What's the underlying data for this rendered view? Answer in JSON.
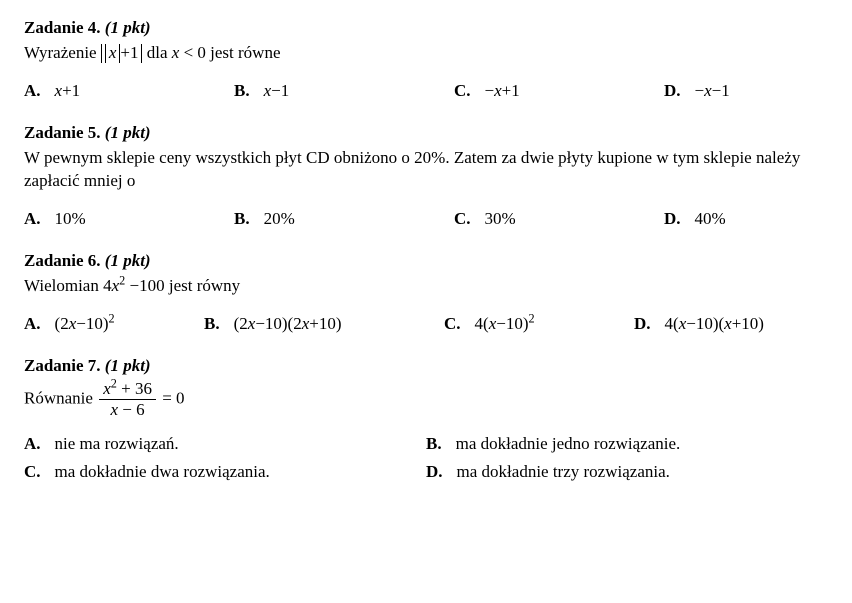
{
  "tasks": [
    {
      "num": "Zadanie 4.",
      "pts": "(1 pkt)",
      "prompt_pre": "Wyrażenie ",
      "prompt_post": " dla ",
      "abs_inner_var": "x",
      "abs_inner_plus": "+1",
      "cond_var": "x",
      "cond_rest": " < 0 jest równe",
      "answers": {
        "A": {
          "v": "x",
          "t": "+1"
        },
        "B": {
          "v": "x",
          "t": "−1"
        },
        "C": {
          "pre": "−",
          "v": "x",
          "t": "+1"
        },
        "D": {
          "pre": "−",
          "v": "x",
          "t": "−1"
        }
      }
    },
    {
      "num": "Zadanie 5.",
      "pts": "(1 pkt)",
      "prompt": "W pewnym sklepie ceny wszystkich płyt CD obniżono o 20%. Zatem za dwie płyty kupione w tym sklepie należy zapłacić mniej o",
      "answers": {
        "A": "10%",
        "B": "20%",
        "C": "30%",
        "D": "40%"
      }
    },
    {
      "num": "Zadanie 6.",
      "pts": "(1 pkt)",
      "prompt_pre": "Wielomian ",
      "poly_coef": "4",
      "poly_var": "x",
      "poly_rest": " −100 jest równy",
      "answers": {
        "A": {
          "open": "(2",
          "v": "x",
          "mid": "−10)",
          "sup": "2"
        },
        "B": {
          "open": "(2",
          "v": "x",
          "mid": "−10)(2",
          "v2": "x",
          "close": "+10)"
        },
        "C": {
          "open": "4(",
          "v": "x",
          "mid": "−10)",
          "sup": "2"
        },
        "D": {
          "open": "4(",
          "v": "x",
          "mid": "−10)(",
          "v2": "x",
          "close": "+10)"
        }
      }
    },
    {
      "num": "Zadanie 7.",
      "pts": "(1 pkt)",
      "prompt_pre": "Równanie ",
      "num_var": "x",
      "num_rest": " + 36",
      "den_var": "x",
      "den_rest": " − 6",
      "eq": " = 0",
      "answers": {
        "A": "nie ma rozwiązań.",
        "B": "ma dokładnie jedno rozwiązanie.",
        "C": "ma dokładnie dwa rozwiązania.",
        "D": "ma dokładnie trzy rozwiązania."
      }
    }
  ],
  "labels": {
    "A": "A.",
    "B": "B.",
    "C": "C.",
    "D": "D."
  }
}
